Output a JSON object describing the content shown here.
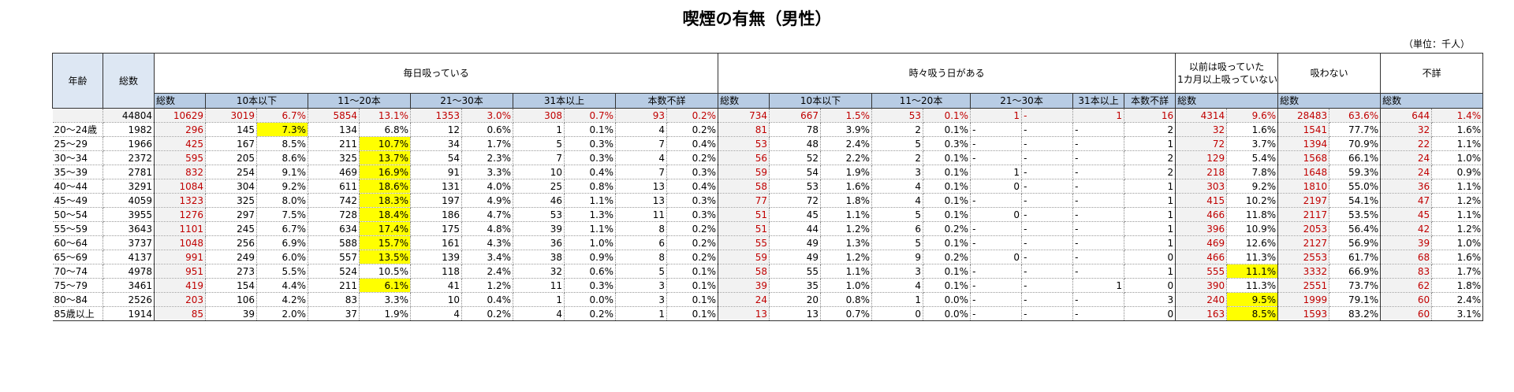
{
  "title": "喫煙の有無（男性）",
  "unit": "（単位：千人）",
  "header": {
    "age": "年齢",
    "total": "総数",
    "daily": "毎日吸っている",
    "sometimes": "時々吸う日がある",
    "former_line1": "以前は吸っていた",
    "former_line2": "1カ月以上吸っていない",
    "never": "吸わない",
    "unknown": "不詳",
    "sub_total": "総数",
    "le10": "10本以下",
    "b11_20": "11～20本",
    "b21_30": "21～30本",
    "ge31": "31本以上",
    "unk_count": "本数不詳"
  },
  "rows": [
    {
      "age": "",
      "total": "44804",
      "d": [
        "10629",
        "3019",
        "6.7%",
        "5854",
        "13.1%",
        "1353",
        "3.0%",
        "308",
        "0.7%",
        "93",
        "0.2%"
      ],
      "s": [
        "734",
        "667",
        "1.5%",
        "53",
        "0.1%",
        "1",
        "-",
        "1",
        "16"
      ],
      "f": [
        "4314",
        "9.6%"
      ],
      "n": [
        "28483",
        "63.6%"
      ],
      "u": [
        "644",
        "1.4%"
      ]
    },
    {
      "age": "20～24歳",
      "total": "1982",
      "d": [
        "296",
        "145",
        "7.3%",
        "134",
        "6.8%",
        "12",
        "0.6%",
        "1",
        "0.1%",
        "4",
        "0.2%"
      ],
      "s": [
        "81",
        "78",
        "3.9%",
        "2",
        "0.1%",
        "-",
        "-",
        "-",
        "2"
      ],
      "f": [
        "32",
        "1.6%"
      ],
      "n": [
        "1541",
        "77.7%"
      ],
      "u": [
        "32",
        "1.6%"
      ]
    },
    {
      "age": "25～29",
      "total": "1966",
      "d": [
        "425",
        "167",
        "8.5%",
        "211",
        "10.7%",
        "34",
        "1.7%",
        "5",
        "0.3%",
        "7",
        "0.4%"
      ],
      "s": [
        "53",
        "48",
        "2.4%",
        "5",
        "0.3%",
        "-",
        "-",
        "-",
        "1"
      ],
      "f": [
        "72",
        "3.7%"
      ],
      "n": [
        "1394",
        "70.9%"
      ],
      "u": [
        "22",
        "1.1%"
      ]
    },
    {
      "age": "30～34",
      "total": "2372",
      "d": [
        "595",
        "205",
        "8.6%",
        "325",
        "13.7%",
        "54",
        "2.3%",
        "7",
        "0.3%",
        "4",
        "0.2%"
      ],
      "s": [
        "56",
        "52",
        "2.2%",
        "2",
        "0.1%",
        "-",
        "-",
        "-",
        "2"
      ],
      "f": [
        "129",
        "5.4%"
      ],
      "n": [
        "1568",
        "66.1%"
      ],
      "u": [
        "24",
        "1.0%"
      ]
    },
    {
      "age": "35～39",
      "total": "2781",
      "d": [
        "832",
        "254",
        "9.1%",
        "469",
        "16.9%",
        "91",
        "3.3%",
        "10",
        "0.4%",
        "7",
        "0.3%"
      ],
      "s": [
        "59",
        "54",
        "1.9%",
        "3",
        "0.1%",
        "1",
        "-",
        "-",
        "2"
      ],
      "f": [
        "218",
        "7.8%"
      ],
      "n": [
        "1648",
        "59.3%"
      ],
      "u": [
        "24",
        "0.9%"
      ]
    },
    {
      "age": "40～44",
      "total": "3291",
      "d": [
        "1084",
        "304",
        "9.2%",
        "611",
        "18.6%",
        "131",
        "4.0%",
        "25",
        "0.8%",
        "13",
        "0.4%"
      ],
      "s": [
        "58",
        "53",
        "1.6%",
        "4",
        "0.1%",
        "0",
        "-",
        "-",
        "1"
      ],
      "f": [
        "303",
        "9.2%"
      ],
      "n": [
        "1810",
        "55.0%"
      ],
      "u": [
        "36",
        "1.1%"
      ]
    },
    {
      "age": "45～49",
      "total": "4059",
      "d": [
        "1323",
        "325",
        "8.0%",
        "742",
        "18.3%",
        "197",
        "4.9%",
        "46",
        "1.1%",
        "13",
        "0.3%"
      ],
      "s": [
        "77",
        "72",
        "1.8%",
        "4",
        "0.1%",
        "-",
        "-",
        "-",
        "1"
      ],
      "f": [
        "415",
        "10.2%"
      ],
      "n": [
        "2197",
        "54.1%"
      ],
      "u": [
        "47",
        "1.2%"
      ]
    },
    {
      "age": "50～54",
      "total": "3955",
      "d": [
        "1276",
        "297",
        "7.5%",
        "728",
        "18.4%",
        "186",
        "4.7%",
        "53",
        "1.3%",
        "11",
        "0.3%"
      ],
      "s": [
        "51",
        "45",
        "1.1%",
        "5",
        "0.1%",
        "0",
        "-",
        "-",
        "1"
      ],
      "f": [
        "466",
        "11.8%"
      ],
      "n": [
        "2117",
        "53.5%"
      ],
      "u": [
        "45",
        "1.1%"
      ]
    },
    {
      "age": "55～59",
      "total": "3643",
      "d": [
        "1101",
        "245",
        "6.7%",
        "634",
        "17.4%",
        "175",
        "4.8%",
        "39",
        "1.1%",
        "8",
        "0.2%"
      ],
      "s": [
        "51",
        "44",
        "1.2%",
        "6",
        "0.2%",
        "-",
        "-",
        "-",
        "1"
      ],
      "f": [
        "396",
        "10.9%"
      ],
      "n": [
        "2053",
        "56.4%"
      ],
      "u": [
        "42",
        "1.2%"
      ]
    },
    {
      "age": "60～64",
      "total": "3737",
      "d": [
        "1048",
        "256",
        "6.9%",
        "588",
        "15.7%",
        "161",
        "4.3%",
        "36",
        "1.0%",
        "6",
        "0.2%"
      ],
      "s": [
        "55",
        "49",
        "1.3%",
        "5",
        "0.1%",
        "-",
        "-",
        "-",
        "1"
      ],
      "f": [
        "469",
        "12.6%"
      ],
      "n": [
        "2127",
        "56.9%"
      ],
      "u": [
        "39",
        "1.0%"
      ]
    },
    {
      "age": "65～69",
      "total": "4137",
      "d": [
        "991",
        "249",
        "6.0%",
        "557",
        "13.5%",
        "139",
        "3.4%",
        "38",
        "0.9%",
        "8",
        "0.2%"
      ],
      "s": [
        "59",
        "49",
        "1.2%",
        "9",
        "0.2%",
        "0",
        "-",
        "-",
        "0"
      ],
      "f": [
        "466",
        "11.3%"
      ],
      "n": [
        "2553",
        "61.7%"
      ],
      "u": [
        "68",
        "1.6%"
      ]
    },
    {
      "age": "70～74",
      "total": "4978",
      "d": [
        "951",
        "273",
        "5.5%",
        "524",
        "10.5%",
        "118",
        "2.4%",
        "32",
        "0.6%",
        "5",
        "0.1%"
      ],
      "s": [
        "58",
        "55",
        "1.1%",
        "3",
        "0.1%",
        "-",
        "-",
        "-",
        "1"
      ],
      "f": [
        "555",
        "11.1%"
      ],
      "n": [
        "3332",
        "66.9%"
      ],
      "u": [
        "83",
        "1.7%"
      ]
    },
    {
      "age": "75～79",
      "total": "3461",
      "d": [
        "419",
        "154",
        "4.4%",
        "211",
        "6.1%",
        "41",
        "1.2%",
        "11",
        "0.3%",
        "3",
        "0.1%"
      ],
      "s": [
        "39",
        "35",
        "1.0%",
        "4",
        "0.1%",
        "-",
        "-",
        "1",
        "0"
      ],
      "f": [
        "390",
        "11.3%"
      ],
      "n": [
        "2551",
        "73.7%"
      ],
      "u": [
        "62",
        "1.8%"
      ]
    },
    {
      "age": "80～84",
      "total": "2526",
      "d": [
        "203",
        "106",
        "4.2%",
        "83",
        "3.3%",
        "10",
        "0.4%",
        "1",
        "0.0%",
        "3",
        "0.1%"
      ],
      "s": [
        "24",
        "20",
        "0.8%",
        "1",
        "0.0%",
        "-",
        "-",
        "-",
        "3"
      ],
      "f": [
        "240",
        "9.5%"
      ],
      "n": [
        "1999",
        "79.1%"
      ],
      "u": [
        "60",
        "2.4%"
      ]
    },
    {
      "age": "85歳以上",
      "total": "1914",
      "d": [
        "85",
        "39",
        "2.0%",
        "37",
        "1.9%",
        "4",
        "0.2%",
        "4",
        "0.2%",
        "1",
        "0.1%"
      ],
      "s": [
        "13",
        "13",
        "0.7%",
        "0",
        "0.0%",
        "-",
        "-",
        "-",
        "0"
      ],
      "f": [
        "163",
        "8.5%"
      ],
      "n": [
        "1593",
        "83.2%"
      ],
      "u": [
        "60",
        "3.1%"
      ]
    }
  ],
  "highlights": {
    "daily_le10_pct": [
      1
    ],
    "daily_11_20_pct": [
      2,
      3,
      4,
      5,
      6,
      7,
      8,
      9,
      10,
      12
    ],
    "former_pct": [
      11,
      13,
      14
    ]
  },
  "colors": {
    "header_blue": "#b8cce4",
    "header_light": "#dde7f3",
    "highlight": "#ffff00",
    "total_red": "#c00000",
    "shade": "#f2f2f2"
  }
}
